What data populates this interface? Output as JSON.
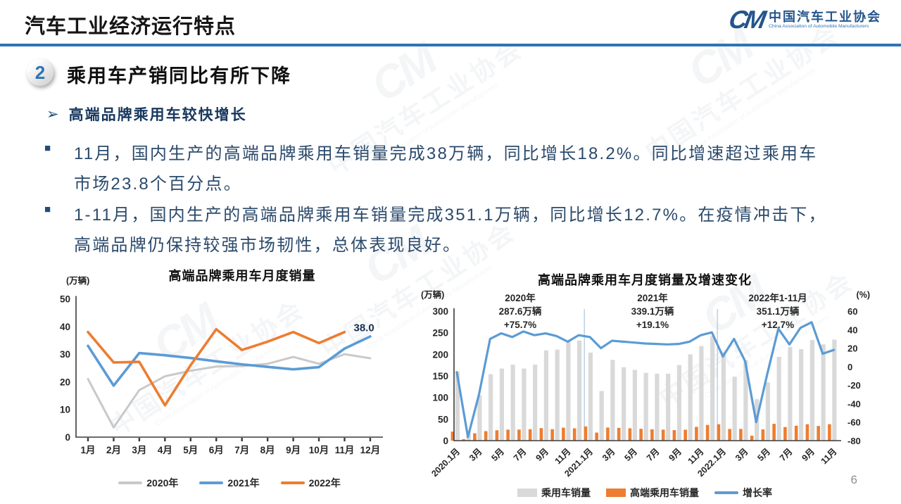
{
  "slide": {
    "title": "汽车工业经济运行特点",
    "page_number": "6",
    "section_number": "2",
    "section_heading": "乘用车产销同比有所下降",
    "subheading": "高端品牌乘用车较快增长",
    "bullets": [
      {
        "lines": [
          "11月，国内生产的高端品牌乘用车销量完成38万辆，同比增长18.2%。同比增速超过乘用车",
          "市场23.8个百分点。"
        ]
      },
      {
        "lines": [
          "1-11月，国内生产的高端品牌乘用车销量完成351.1万辆，同比增长12.7%。在疫情冲击下，",
          "高端品牌仍保持较强市场韧性，总体表现良好。"
        ]
      }
    ]
  },
  "logo": {
    "mark": "CM",
    "name_cn": "中国汽车工业协会",
    "name_en": "China Association of Automobile Manufacturers"
  },
  "watermark": {
    "mark": "CM",
    "cn": "中国汽车工业协会",
    "en": "China Association of Automobile Manufacturers"
  },
  "colors": {
    "accent_blue": "#2E74B5",
    "body_text": "#2B4A6B",
    "dark_navy": "#17375E"
  },
  "chart_data": [
    {
      "type": "line",
      "title": "高端品牌乘用车月度销量",
      "unit_label": "(万辆)",
      "categories": [
        "1月",
        "2月",
        "3月",
        "4月",
        "5月",
        "6月",
        "7月",
        "8月",
        "9月",
        "10月",
        "11月",
        "12月"
      ],
      "ylim": [
        0,
        50
      ],
      "yticks": [
        0,
        10,
        20,
        30,
        40,
        50
      ],
      "grid": false,
      "legend_position": "bottom",
      "series": [
        {
          "name": "2020年",
          "color": "#C9C9C9",
          "values": [
            21,
            3.5,
            17,
            22,
            24,
            25.5,
            25.7,
            26.5,
            29,
            26.5,
            30,
            28.5
          ]
        },
        {
          "name": "2021年",
          "color": "#5B9BD5",
          "values": [
            33,
            18.6,
            30.4,
            29.6,
            28.6,
            27.4,
            26.3,
            25.4,
            24.5,
            25.3,
            32,
            36.4
          ]
        },
        {
          "name": "2022年",
          "color": "#ED7D31",
          "values": [
            38,
            27,
            27.2,
            11.5,
            26,
            39,
            31.5,
            34.5,
            38,
            34,
            38
          ]
        }
      ],
      "point_label": {
        "text": "38.0",
        "series": "2022年",
        "category": "11月"
      }
    },
    {
      "type": "combo",
      "title": "高端品牌乘用车月度销量及增速变化",
      "unit_label_left": "(万辆)",
      "unit_label_right": "(%)",
      "x_tick_labels": [
        "2020.1月",
        "3月",
        "5月",
        "7月",
        "9月",
        "11月",
        "2021.1月",
        "3月",
        "5月",
        "7月",
        "9月",
        "11月",
        "2022.1月",
        "3月",
        "5月",
        "7月",
        "9月",
        "11月"
      ],
      "ylim_left": [
        0,
        300
      ],
      "yticks_left": [
        0,
        50,
        100,
        150,
        200,
        250,
        300
      ],
      "ylim_right": [
        -80,
        60
      ],
      "yticks_right": [
        -80,
        -60,
        -40,
        -20,
        0,
        20,
        40,
        60
      ],
      "grid": false,
      "legend_position": "bottom",
      "year_dividers_after_index": [
        11,
        23
      ],
      "annotations": [
        {
          "lines": [
            "2020年",
            "287.6万辆",
            "+75.7%"
          ]
        },
        {
          "lines": [
            "2021年",
            "339.1万辆",
            "+19.1%"
          ]
        },
        {
          "lines": [
            "2022年1-11月",
            "351.1万辆",
            "+12.7%"
          ]
        }
      ],
      "series": [
        {
          "name": "乘用车销量",
          "type": "bar",
          "axis": "left",
          "color": "#D9D9D9",
          "values": [
            160,
            22,
            105,
            154,
            167,
            176,
            167,
            176,
            209,
            211,
            230,
            232,
            204,
            115,
            187,
            170,
            164,
            157,
            155,
            155,
            175,
            200,
            219,
            242,
            205,
            148,
            186,
            96,
            135,
            194,
            217,
            212,
            233,
            223,
            234
          ]
        },
        {
          "name": "高端乘用车销量",
          "type": "bar",
          "axis": "left",
          "color": "#ED7D31",
          "values": [
            21,
            3.5,
            17,
            22,
            24,
            25.5,
            25.7,
            26.5,
            29,
            26.5,
            30,
            28.5,
            33,
            18.6,
            30.4,
            29.6,
            28.6,
            27.4,
            26.3,
            25.4,
            24.5,
            25.3,
            32,
            36.4,
            38,
            27,
            27.2,
            11.5,
            26,
            39,
            31.5,
            34.5,
            38,
            34,
            38
          ]
        },
        {
          "name": "增长率",
          "type": "line",
          "axis": "right",
          "color": "#5B9BD5",
          "values": [
            -6,
            -76,
            -30,
            30,
            36,
            32,
            38,
            34,
            36,
            33,
            27,
            34,
            32,
            20,
            28,
            27,
            26,
            25,
            24.5,
            24,
            24.5,
            27,
            34,
            37,
            11,
            30,
            6,
            -60,
            -8,
            41,
            24,
            42,
            48,
            14,
            18
          ]
        }
      ]
    }
  ]
}
